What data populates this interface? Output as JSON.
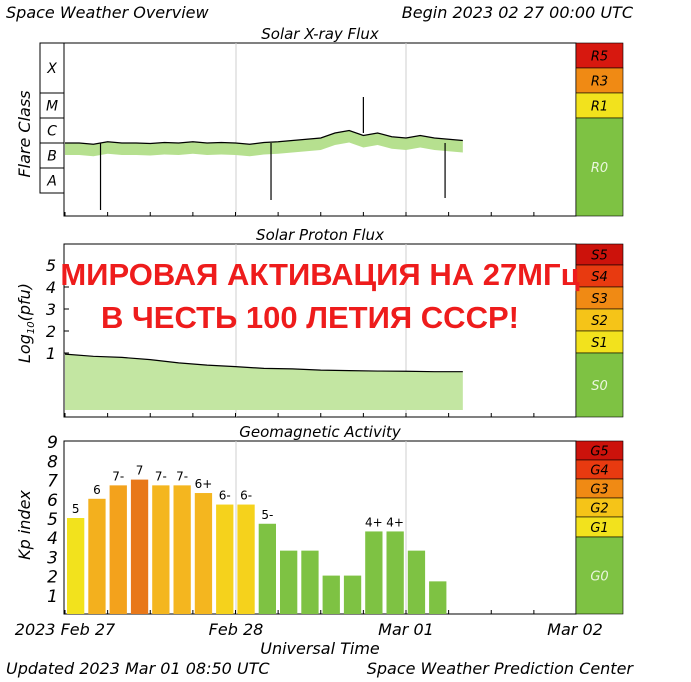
{
  "header": {
    "title": "Space Weather Overview",
    "begin": "Begin 2023 02 27 00:00 UTC"
  },
  "footer": {
    "updated": "Updated 2023 Mar 01 08:50 UTC",
    "center": "Space Weather Prediction Center"
  },
  "overlay": {
    "line1": "МИРОВАЯ АКТИВАЦИЯ НА 27МГц",
    "line2": "В ЧЕСТЬ 100 ЛЕТИЯ СССР!",
    "color": "#ee1c1c"
  },
  "colors": {
    "r0": "#7ec243",
    "r1": "#f2e21d",
    "r3": "#f08a14",
    "r5": "#d7180f",
    "g1": "#f2e21d",
    "g2": "#f5c418",
    "g3": "#f08a14",
    "g4": "#e83a10",
    "g5": "#cc120b",
    "kp_green": "#7ec243",
    "kp_yellow": "#f2e21d",
    "kp_gold": "#f5c418",
    "kp_orange": "#f08a14",
    "kp_dark": "#ee7a14"
  },
  "chart_data": [
    {
      "type": "line",
      "title": "Solar X-ray Flux",
      "ylabel": "Flare Class",
      "classes": [
        "X",
        "M",
        "C",
        "B",
        "A"
      ],
      "scale_labels": [
        "R5",
        "R3",
        "R1",
        "R0"
      ],
      "x": [
        0,
        2,
        4,
        6,
        8,
        10,
        12,
        14,
        16,
        18,
        20,
        22,
        24,
        26,
        28,
        30,
        32,
        34,
        36,
        38,
        40,
        42,
        44,
        46,
        48,
        50,
        52,
        54,
        56
      ],
      "y_log": [
        -6.0,
        -6.0,
        -6.05,
        -5.95,
        -6.0,
        -6.0,
        -6.02,
        -5.98,
        -6.0,
        -5.95,
        -6.0,
        -5.98,
        -6.0,
        -6.05,
        -5.98,
        -5.95,
        -5.9,
        -5.85,
        -5.8,
        -5.6,
        -5.5,
        -5.7,
        -5.6,
        -5.75,
        -5.8,
        -5.7,
        -5.8,
        -5.85,
        -5.9
      ]
    },
    {
      "type": "line",
      "title": "Solar Proton Flux",
      "ylabel": "Log10(pfu)",
      "yticks": [
        "5",
        "4",
        "3",
        "2",
        "1"
      ],
      "scale_labels": [
        "S5",
        "S4",
        "S3",
        "S2",
        "S1",
        "S0"
      ],
      "x": [
        0,
        4,
        8,
        12,
        16,
        20,
        24,
        28,
        32,
        36,
        40,
        44,
        48,
        52,
        56
      ],
      "y": [
        0.95,
        0.85,
        0.8,
        0.7,
        0.55,
        0.45,
        0.38,
        0.3,
        0.28,
        0.22,
        0.2,
        0.18,
        0.17,
        0.15,
        0.15
      ]
    },
    {
      "type": "bar",
      "title": "Geomagnetic Activity",
      "ylabel": "Kp index",
      "ylim": [
        0,
        9
      ],
      "yticks": [
        "9",
        "8",
        "7",
        "6",
        "5",
        "4",
        "3",
        "2",
        "1"
      ],
      "scale_labels": [
        "G5",
        "G4",
        "G3",
        "G2",
        "G1",
        "G0"
      ],
      "values": [
        5,
        6,
        6.7,
        7,
        6.7,
        6.7,
        6.3,
        5.7,
        5.7,
        4.7,
        3.3,
        3.3,
        2,
        2,
        4.3,
        4.3,
        3.3,
        1.7
      ],
      "labels": [
        "5",
        "6",
        "7-",
        "7",
        "7-",
        "7-",
        "6+",
        "6-",
        "6-",
        "5-",
        "",
        "",
        "",
        "",
        "4+",
        "4+",
        "",
        ""
      ],
      "xlabel": "Universal Time",
      "xticks": [
        "2023 Feb 27",
        "Feb 28",
        "Mar 01",
        "Mar 02"
      ]
    }
  ]
}
